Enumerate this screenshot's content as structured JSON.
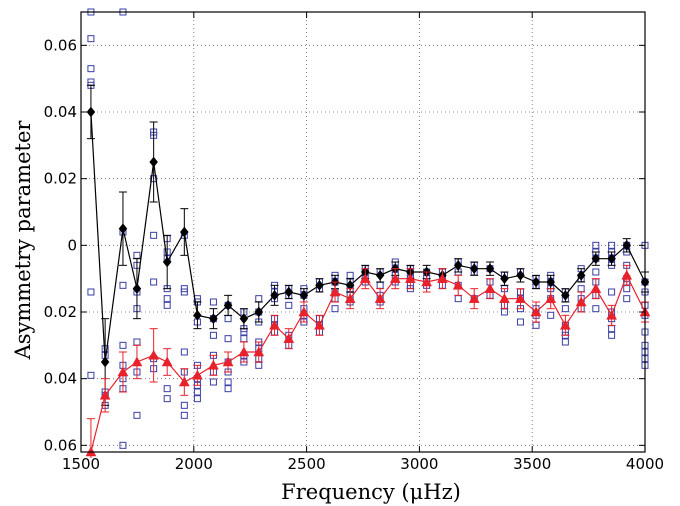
{
  "chart_data": {
    "type": "scatter",
    "title": "",
    "xlabel": "Frequency (μHz)",
    "ylabel": "Asymmetry parameter",
    "xlim": [
      1500,
      4000
    ],
    "ylim": [
      -0.062,
      0.07
    ],
    "x_ticks": [
      1500,
      2000,
      2500,
      3000,
      3500,
      4000
    ],
    "x_tick_labels": [
      "1500",
      "2000",
      "2500",
      "3000",
      "3500",
      "4000"
    ],
    "y_ticks": [
      0.06,
      0.04,
      0.02,
      0,
      -0.02,
      -0.04,
      -0.06
    ],
    "y_tick_labels": [
      "0.06",
      "0.04",
      "0.02",
      "0",
      "0.02",
      "0.04",
      "0.06"
    ],
    "grid": true,
    "colors": {
      "black_series": "#000000",
      "red_series": "#e8212b",
      "squares": "#3a3fa6"
    },
    "x": [
      1544,
      1607,
      1686,
      1748,
      1822,
      1882,
      1958,
      2016,
      2087,
      2152,
      2222,
      2288,
      2358,
      2421,
      2488,
      2557,
      2626,
      2693,
      2760,
      2826,
      2893,
      2960,
      3032,
      3102,
      3172,
      3243,
      3313,
      3377,
      3448,
      3517,
      3582,
      3647,
      3717,
      3782,
      3852,
      3919,
      4000
    ],
    "series": [
      {
        "marker": "diamond",
        "values": [
          0.04,
          -0.035,
          0.005,
          -0.013,
          0.025,
          -0.005,
          0.004,
          -0.021,
          -0.022,
          -0.018,
          -0.022,
          -0.02,
          -0.015,
          -0.014,
          -0.015,
          -0.012,
          -0.011,
          -0.012,
          -0.008,
          -0.009,
          -0.007,
          -0.008,
          -0.008,
          -0.009,
          -0.006,
          -0.007,
          -0.007,
          -0.01,
          -0.009,
          -0.011,
          -0.011,
          -0.015,
          -0.009,
          -0.004,
          -0.004,
          0,
          -0.011
        ],
        "errors": [
          0.008,
          0.013,
          0.011,
          0.009,
          0.012,
          0.008,
          0.007,
          0.004,
          0.003,
          0.003,
          0.003,
          0.003,
          0.003,
          0.002,
          0.002,
          0.002,
          0.002,
          0.002,
          0.002,
          0.002,
          0.002,
          0.002,
          0.002,
          0.002,
          0.002,
          0.002,
          0.002,
          0.002,
          0.002,
          0.002,
          0.002,
          0.002,
          0.002,
          0.002,
          0.002,
          0.002,
          0.003
        ]
      },
      {
        "marker": "triangle",
        "values": [
          -0.062,
          -0.045,
          -0.038,
          -0.035,
          -0.033,
          -0.035,
          -0.041,
          -0.039,
          -0.036,
          -0.035,
          -0.032,
          -0.032,
          -0.024,
          -0.028,
          -0.02,
          -0.024,
          -0.014,
          -0.016,
          -0.01,
          -0.016,
          -0.01,
          -0.01,
          -0.011,
          -0.01,
          -0.012,
          -0.016,
          -0.013,
          -0.016,
          -0.016,
          -0.02,
          -0.016,
          -0.024,
          -0.017,
          -0.013,
          -0.021,
          -0.009,
          -0.02
        ],
        "errors": [
          0.01,
          0.005,
          0.006,
          0.005,
          0.008,
          0.004,
          0.004,
          0.003,
          0.003,
          0.003,
          0.003,
          0.003,
          0.003,
          0.003,
          0.003,
          0.003,
          0.003,
          0.003,
          0.003,
          0.003,
          0.003,
          0.003,
          0.003,
          0.003,
          0.003,
          0.003,
          0.003,
          0.003,
          0.003,
          0.003,
          0.003,
          0.003,
          0.003,
          0.003,
          0.003,
          0.003,
          0.003
        ]
      }
    ],
    "squares": [
      [
        1544,
        0.07
      ],
      [
        1544,
        0.062
      ],
      [
        1544,
        0.053
      ],
      [
        1544,
        0.049
      ],
      [
        1544,
        0.048
      ],
      [
        1544,
        -0.014
      ],
      [
        1544,
        -0.039
      ],
      [
        1607,
        -0.045
      ],
      [
        1607,
        -0.048
      ],
      [
        1607,
        -0.044
      ],
      [
        1607,
        -0.033
      ],
      [
        1607,
        -0.031
      ],
      [
        1686,
        0.07
      ],
      [
        1686,
        0.004
      ],
      [
        1686,
        -0.012
      ],
      [
        1686,
        -0.03
      ],
      [
        1686,
        -0.036
      ],
      [
        1686,
        -0.04
      ],
      [
        1686,
        -0.043
      ],
      [
        1686,
        -0.06
      ],
      [
        1748,
        -0.003
      ],
      [
        1748,
        -0.006
      ],
      [
        1748,
        -0.014
      ],
      [
        1748,
        -0.019
      ],
      [
        1748,
        -0.029
      ],
      [
        1748,
        -0.038
      ],
      [
        1748,
        -0.051
      ],
      [
        1822,
        0.034
      ],
      [
        1822,
        0.033
      ],
      [
        1822,
        0.02
      ],
      [
        1822,
        0.003
      ],
      [
        1822,
        -0.011
      ],
      [
        1822,
        -0.034
      ],
      [
        1822,
        -0.037
      ],
      [
        1882,
        0.002
      ],
      [
        1882,
        -0.002
      ],
      [
        1882,
        -0.004
      ],
      [
        1882,
        -0.013
      ],
      [
        1882,
        -0.016
      ],
      [
        1882,
        -0.018
      ],
      [
        1882,
        -0.043
      ],
      [
        1882,
        -0.046
      ],
      [
        1958,
        0.003
      ],
      [
        1958,
        -0.013
      ],
      [
        1958,
        -0.014
      ],
      [
        1958,
        -0.032
      ],
      [
        1958,
        -0.038
      ],
      [
        1958,
        -0.048
      ],
      [
        1958,
        -0.051
      ],
      [
        2016,
        -0.016
      ],
      [
        2016,
        -0.017
      ],
      [
        2016,
        -0.023
      ],
      [
        2016,
        -0.036
      ],
      [
        2016,
        -0.04
      ],
      [
        2016,
        -0.042
      ],
      [
        2016,
        -0.044
      ],
      [
        2016,
        -0.046
      ],
      [
        2087,
        -0.017
      ],
      [
        2087,
        -0.022
      ],
      [
        2087,
        -0.027
      ],
      [
        2087,
        -0.033
      ],
      [
        2087,
        -0.038
      ],
      [
        2087,
        -0.041
      ],
      [
        2152,
        -0.018
      ],
      [
        2152,
        -0.022
      ],
      [
        2152,
        -0.028
      ],
      [
        2152,
        -0.035
      ],
      [
        2152,
        -0.038
      ],
      [
        2152,
        -0.041
      ],
      [
        2152,
        -0.043
      ],
      [
        2222,
        -0.02
      ],
      [
        2222,
        -0.025
      ],
      [
        2222,
        -0.026
      ],
      [
        2222,
        -0.028
      ],
      [
        2222,
        -0.033
      ],
      [
        2222,
        -0.035
      ],
      [
        2288,
        -0.016
      ],
      [
        2288,
        -0.02
      ],
      [
        2288,
        -0.023
      ],
      [
        2288,
        -0.029
      ],
      [
        2288,
        -0.031
      ],
      [
        2288,
        -0.034
      ],
      [
        2288,
        -0.036
      ],
      [
        2358,
        -0.012
      ],
      [
        2358,
        -0.014
      ],
      [
        2358,
        -0.016
      ],
      [
        2358,
        -0.022
      ],
      [
        2358,
        -0.024
      ],
      [
        2358,
        -0.026
      ],
      [
        2421,
        -0.013
      ],
      [
        2421,
        -0.015
      ],
      [
        2421,
        -0.018
      ],
      [
        2421,
        -0.027
      ],
      [
        2421,
        -0.03
      ],
      [
        2488,
        -0.013
      ],
      [
        2488,
        -0.015
      ],
      [
        2488,
        -0.019
      ],
      [
        2488,
        -0.021
      ],
      [
        2488,
        -0.023
      ],
      [
        2557,
        -0.011
      ],
      [
        2557,
        -0.013
      ],
      [
        2557,
        -0.022
      ],
      [
        2557,
        -0.024
      ],
      [
        2557,
        -0.026
      ],
      [
        2626,
        -0.009
      ],
      [
        2626,
        -0.011
      ],
      [
        2626,
        -0.014
      ],
      [
        2626,
        -0.016
      ],
      [
        2626,
        -0.019
      ],
      [
        2693,
        -0.009
      ],
      [
        2693,
        -0.011
      ],
      [
        2693,
        -0.013
      ],
      [
        2693,
        -0.015
      ],
      [
        2693,
        -0.017
      ],
      [
        2760,
        -0.007
      ],
      [
        2760,
        -0.008
      ],
      [
        2760,
        -0.01
      ],
      [
        2760,
        -0.011
      ],
      [
        2826,
        -0.008
      ],
      [
        2826,
        -0.012
      ],
      [
        2826,
        -0.015
      ],
      [
        2826,
        -0.017
      ],
      [
        2893,
        -0.005
      ],
      [
        2893,
        -0.007
      ],
      [
        2893,
        -0.009
      ],
      [
        2893,
        -0.011
      ],
      [
        2960,
        -0.007
      ],
      [
        2960,
        -0.009
      ],
      [
        2960,
        -0.01
      ],
      [
        2960,
        -0.012
      ],
      [
        2960,
        -0.013
      ],
      [
        3032,
        -0.008
      ],
      [
        3032,
        -0.01
      ],
      [
        3032,
        -0.012
      ],
      [
        3102,
        -0.008
      ],
      [
        3102,
        -0.01
      ],
      [
        3102,
        -0.012
      ],
      [
        3172,
        -0.005
      ],
      [
        3172,
        -0.008
      ],
      [
        3172,
        -0.012
      ],
      [
        3172,
        -0.016
      ],
      [
        3243,
        -0.006
      ],
      [
        3243,
        -0.008
      ],
      [
        3243,
        -0.016
      ],
      [
        3313,
        -0.007
      ],
      [
        3313,
        -0.011
      ],
      [
        3313,
        -0.015
      ],
      [
        3377,
        -0.009
      ],
      [
        3377,
        -0.013
      ],
      [
        3377,
        -0.018
      ],
      [
        3377,
        -0.02
      ],
      [
        3448,
        -0.008
      ],
      [
        3448,
        -0.014
      ],
      [
        3448,
        -0.016
      ],
      [
        3448,
        -0.019
      ],
      [
        3448,
        -0.023
      ],
      [
        3517,
        -0.01
      ],
      [
        3517,
        -0.012
      ],
      [
        3517,
        -0.019
      ],
      [
        3517,
        -0.021
      ],
      [
        3517,
        -0.024
      ],
      [
        3582,
        -0.009
      ],
      [
        3582,
        -0.011
      ],
      [
        3582,
        -0.013
      ],
      [
        3582,
        -0.016
      ],
      [
        3582,
        -0.021
      ],
      [
        3647,
        -0.014
      ],
      [
        3647,
        -0.016
      ],
      [
        3647,
        -0.019
      ],
      [
        3647,
        -0.024
      ],
      [
        3647,
        -0.026
      ],
      [
        3647,
        -0.027
      ],
      [
        3647,
        -0.029
      ],
      [
        3717,
        -0.007
      ],
      [
        3717,
        -0.01
      ],
      [
        3717,
        -0.013
      ],
      [
        3717,
        -0.016
      ],
      [
        3717,
        -0.019
      ],
      [
        3782,
        0
      ],
      [
        3782,
        -0.002
      ],
      [
        3782,
        -0.004
      ],
      [
        3782,
        -0.008
      ],
      [
        3782,
        -0.011
      ],
      [
        3782,
        -0.015
      ],
      [
        3782,
        -0.019
      ],
      [
        3852,
        0
      ],
      [
        3852,
        -0.002
      ],
      [
        3852,
        -0.004
      ],
      [
        3852,
        -0.006
      ],
      [
        3852,
        -0.014
      ],
      [
        3852,
        -0.02
      ],
      [
        3852,
        -0.022
      ],
      [
        3852,
        -0.025
      ],
      [
        3852,
        -0.027
      ],
      [
        3919,
        0
      ],
      [
        3919,
        -0.002
      ],
      [
        3919,
        -0.006
      ],
      [
        3919,
        -0.01
      ],
      [
        3919,
        -0.011
      ],
      [
        3919,
        -0.013
      ],
      [
        3919,
        -0.016
      ],
      [
        4000,
        0
      ],
      [
        4000,
        -0.011
      ],
      [
        4000,
        -0.014
      ],
      [
        4000,
        -0.018
      ],
      [
        4000,
        -0.021
      ],
      [
        4000,
        -0.026
      ],
      [
        4000,
        -0.03
      ],
      [
        4000,
        -0.032
      ],
      [
        4000,
        -0.034
      ],
      [
        4000,
        -0.036
      ]
    ]
  }
}
